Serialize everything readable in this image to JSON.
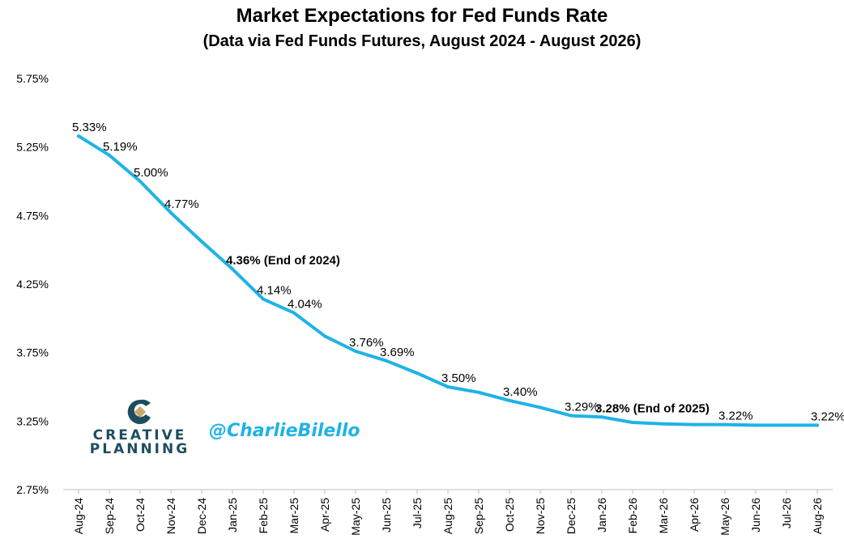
{
  "title": "Market Expectations for Fed Funds Rate",
  "subtitle": "(Data via Fed Funds Futures, August 2024 - August 2026)",
  "logo": {
    "line1": "CREATIVE",
    "line2": "PLANNING",
    "mark_color": "#1d4e5f",
    "accent_color": "#c9a86a"
  },
  "handle": "@CharlieBilello",
  "line_color": "#1fb3e5",
  "chart_data": {
    "type": "line",
    "title": "Market Expectations for Fed Funds Rate",
    "subtitle": "(Data via Fed Funds Futures, August 2024 - August 2026)",
    "categories": [
      "Aug-24",
      "Sep-24",
      "Oct-24",
      "Nov-24",
      "Dec-24",
      "Jan-25",
      "Feb-25",
      "Mar-25",
      "Apr-25",
      "May-25",
      "Jun-25",
      "Jul-25",
      "Aug-25",
      "Sep-25",
      "Oct-25",
      "Nov-25",
      "Dec-25",
      "Jan-26",
      "Feb-26",
      "Mar-26",
      "Apr-26",
      "May-26",
      "Jun-26",
      "Jul-26",
      "Aug-26"
    ],
    "values": [
      5.33,
      5.19,
      5.0,
      4.77,
      4.56,
      4.36,
      4.14,
      4.04,
      3.87,
      3.76,
      3.69,
      3.6,
      3.5,
      3.46,
      3.4,
      3.35,
      3.29,
      3.28,
      3.24,
      3.23,
      3.225,
      3.225,
      3.22,
      3.22,
      3.22
    ],
    "ylim": [
      2.75,
      5.75
    ],
    "yticks": [
      "5.75%",
      "5.25%",
      "4.75%",
      "4.25%",
      "3.75%",
      "3.25%",
      "2.75%"
    ],
    "ytick_values": [
      5.75,
      5.25,
      4.75,
      4.25,
      3.75,
      3.25,
      2.75
    ],
    "grid": false,
    "annotations": [
      {
        "index": 0,
        "text": "5.33%",
        "bold": false
      },
      {
        "index": 1,
        "text": "5.19%",
        "bold": false
      },
      {
        "index": 2,
        "text": "5.00%",
        "bold": false
      },
      {
        "index": 3,
        "text": "4.77%",
        "bold": false
      },
      {
        "index": 5,
        "text": "4.36% (End of 2024)",
        "bold": true
      },
      {
        "index": 6,
        "text": "4.14%",
        "bold": false
      },
      {
        "index": 7,
        "text": "4.04%",
        "bold": false
      },
      {
        "index": 9,
        "text": "3.76%",
        "bold": false
      },
      {
        "index": 10,
        "text": "3.69%",
        "bold": false
      },
      {
        "index": 12,
        "text": "3.50%",
        "bold": false
      },
      {
        "index": 14,
        "text": "3.40%",
        "bold": false
      },
      {
        "index": 16,
        "text": "3.29%",
        "bold": false
      },
      {
        "index": 17,
        "text": "3.28% (End of 2025)",
        "bold": true
      },
      {
        "index": 21,
        "text": "3.22%",
        "bold": false
      },
      {
        "index": 24,
        "text": "3.22%",
        "bold": false
      }
    ]
  }
}
